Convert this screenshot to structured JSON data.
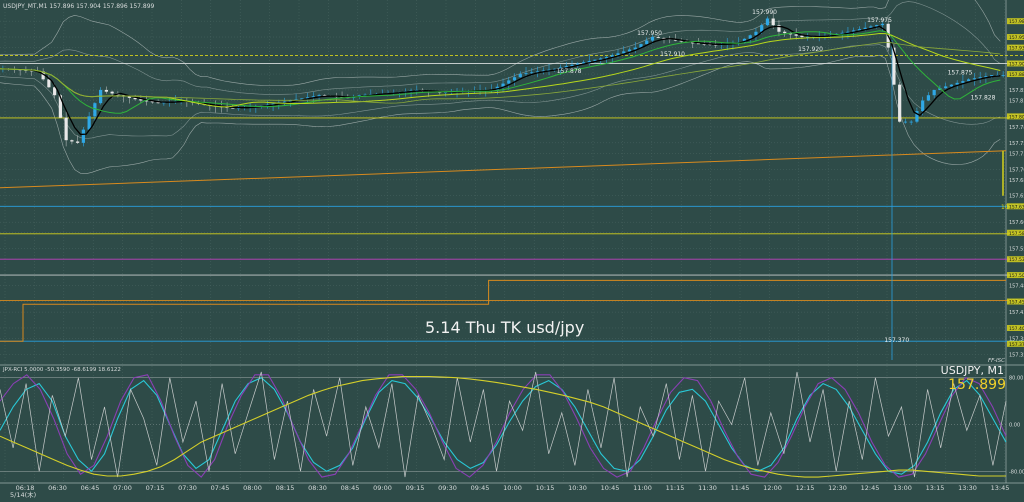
{
  "header": {
    "main_label": "USDJPY_MT,M1  157.896 157.904 157.896 157.899",
    "sub_label": "JPX-RCI 5.0000 -50.3590 -68.6199 18.6122",
    "caption": "5.14 Thu TK usd/jpy",
    "symbol": "USDJPY, M1",
    "bid": "157.899",
    "date_label": "5/14(木)",
    "brand": "FF-ISC"
  },
  "colors": {
    "background": "#2e4b48",
    "grid": "#4a6663",
    "bid_text": "#f1d12a",
    "rci_cyan": "#29c8d6",
    "rci_violet": "#8a3fb5",
    "rci_white": "#c8cccc",
    "rci_yellow": "#d4cf2a",
    "ma_black": "#000000",
    "ma_green": "#2fb43a",
    "ma_lime": "#b6d71c",
    "candle_up": "#2fa8e6",
    "candle_down": "#e8e8e8",
    "level_orange": "#d88a1e",
    "level_yellow": "#d6d21b",
    "level_magenta": "#c040c0"
  },
  "chart_data": [
    {
      "type": "line",
      "name": "price",
      "title": "USDJPY, M1",
      "x_ticks": [
        "06:18",
        "06:30",
        "06:45",
        "07:00",
        "07:15",
        "07:30",
        "07:45",
        "08:00",
        "08:15",
        "08:30",
        "08:45",
        "09:00",
        "09:15",
        "09:30",
        "09:45",
        "10:00",
        "10:15",
        "10:30",
        "10:45",
        "11:00",
        "11:15",
        "11:30",
        "11:45",
        "12:00",
        "12:15",
        "12:30",
        "12:45",
        "13:00",
        "13:15",
        "13:30",
        "13:45"
      ],
      "ylim": [
        157.33,
        158.02
      ],
      "y_ticks": [
        157.98,
        157.95,
        157.93,
        157.9,
        157.88,
        157.85,
        157.83,
        157.8,
        157.78,
        157.75,
        157.73,
        157.7,
        157.68,
        157.65,
        157.63,
        157.6,
        157.58,
        157.55,
        157.53,
        157.5,
        157.48,
        157.45,
        157.43,
        157.4,
        157.38,
        157.35
      ],
      "price_series": [
        [
          0,
          157.89
        ],
        [
          6,
          157.885
        ],
        [
          9,
          157.84
        ],
        [
          11,
          157.755
        ],
        [
          13,
          157.75
        ],
        [
          15,
          157.8
        ],
        [
          17,
          157.85
        ],
        [
          20,
          157.84
        ],
        [
          24,
          157.83
        ],
        [
          27,
          157.825
        ],
        [
          31,
          157.83
        ],
        [
          36,
          157.82
        ],
        [
          40,
          157.815
        ],
        [
          45,
          157.82
        ],
        [
          50,
          157.83
        ],
        [
          55,
          157.84
        ],
        [
          60,
          157.835
        ],
        [
          62,
          157.84
        ],
        [
          68,
          157.845
        ],
        [
          72,
          157.85
        ],
        [
          76,
          157.845
        ],
        [
          80,
          157.848
        ],
        [
          85,
          157.85
        ],
        [
          90,
          157.88
        ],
        [
          96,
          157.89
        ],
        [
          100,
          157.9
        ],
        [
          105,
          157.912
        ],
        [
          110,
          157.93
        ],
        [
          113,
          157.95
        ],
        [
          116,
          157.945
        ],
        [
          120,
          157.938
        ],
        [
          124,
          157.935
        ],
        [
          128,
          157.94
        ],
        [
          131,
          157.96
        ],
        [
          133,
          157.985
        ],
        [
          135,
          157.96
        ],
        [
          139,
          157.95
        ],
        [
          143,
          157.952
        ],
        [
          147,
          157.96
        ],
        [
          151,
          157.97
        ],
        [
          153,
          157.975
        ],
        [
          154,
          157.93
        ],
        [
          155,
          157.86
        ],
        [
          156,
          157.79
        ],
        [
          158,
          157.79
        ],
        [
          160,
          157.83
        ],
        [
          162,
          157.85
        ],
        [
          165,
          157.86
        ],
        [
          168,
          157.87
        ],
        [
          172,
          157.878
        ]
      ],
      "price_labels": [
        {
          "x": 113,
          "value": "157.950"
        },
        {
          "x": 117,
          "value": "157.910"
        },
        {
          "x": 99,
          "value": "157.878"
        },
        {
          "x": 133,
          "value": "157.990"
        },
        {
          "x": 141,
          "value": "157.920"
        },
        {
          "x": 153,
          "value": "157.975"
        },
        {
          "x": 167,
          "value": "157.875"
        },
        {
          "x": 171,
          "value": "157.828"
        },
        {
          "x": 156,
          "value": "157.370"
        }
      ],
      "level_tags": [
        157.98,
        157.95,
        157.93,
        157.9,
        157.88,
        157.8,
        157.63,
        157.58,
        157.53,
        157.5,
        157.45,
        157.4,
        157.37
      ],
      "count_label": "10",
      "horizontal_levels": [
        {
          "value": 157.915,
          "color": "#d6d21b",
          "style": "dashed"
        },
        {
          "value": 157.9,
          "color": "#d8dcdc",
          "style": "solid"
        },
        {
          "value": 157.797,
          "color": "#d6d21b",
          "style": "solid"
        },
        {
          "value": 157.63,
          "color": "#29a0e0",
          "style": "solid"
        },
        {
          "value": 157.578,
          "color": "#d6d21b",
          "style": "solid"
        },
        {
          "value": 157.53,
          "color": "#c040c0",
          "style": "solid"
        },
        {
          "value": 157.5,
          "color": "#c8cccc",
          "style": "solid"
        },
        {
          "value": 157.452,
          "color": "#d88a1e",
          "style": "solid"
        },
        {
          "value": 157.375,
          "color": "#29a0e0",
          "style": "solid"
        }
      ],
      "orange_trend": [
        [
          0,
          157.665
        ],
        [
          175,
          157.735
        ]
      ],
      "orange_step": [
        [
          0,
          157.375
        ],
        [
          4,
          157.375
        ],
        [
          4,
          157.445
        ],
        [
          85,
          157.445
        ],
        [
          85,
          157.49
        ],
        [
          175,
          157.49
        ]
      ]
    },
    {
      "type": "line",
      "name": "JPX-RCI",
      "title": "JPX-RCI 5.0000 -50.3590 -68.6199 18.6122",
      "ylim": [
        -100,
        100
      ],
      "y_ticks": [
        80,
        0,
        -80
      ],
      "y_tick_labels": [
        "80.00",
        "0.00",
        "-80.00"
      ],
      "series": [
        {
          "color": "#29c8d6",
          "values": [
            -10,
            30,
            60,
            70,
            40,
            -20,
            -60,
            -80,
            -50,
            10,
            60,
            75,
            50,
            0,
            -50,
            -75,
            -60,
            -10,
            40,
            70,
            80,
            60,
            20,
            -30,
            -65,
            -80,
            -70,
            -40,
            10,
            55,
            75,
            70,
            45,
            10,
            -30,
            -60,
            -75,
            -65,
            -35,
            5,
            40,
            65,
            75,
            60,
            30,
            -10,
            -50,
            -75,
            -80,
            -60,
            -20,
            25,
            55,
            60,
            40,
            0,
            -40,
            -70,
            -80,
            -70,
            -40,
            10,
            50,
            70,
            60,
            30,
            -10,
            -50,
            -80,
            -85,
            -70,
            -30,
            20,
            60,
            75,
            50,
            10,
            -30
          ]
        },
        {
          "color": "#8a3fb5",
          "values": [
            40,
            70,
            85,
            60,
            10,
            -50,
            -85,
            -70,
            -20,
            40,
            80,
            85,
            40,
            -20,
            -70,
            -90,
            -60,
            0,
            50,
            85,
            85,
            45,
            -10,
            -60,
            -90,
            -85,
            -50,
            0,
            50,
            85,
            85,
            60,
            20,
            -30,
            -75,
            -90,
            -70,
            -30,
            20,
            60,
            85,
            85,
            55,
            10,
            -40,
            -75,
            -90,
            -80,
            -40,
            10,
            55,
            80,
            75,
            40,
            -10,
            -55,
            -85,
            -90,
            -65,
            -20,
            30,
            70,
            80,
            60,
            20,
            -30,
            -70,
            -90,
            -85,
            -50,
            0,
            50,
            80,
            70,
            30,
            -20
          ]
        },
        {
          "color": "#c8cccc",
          "values": [
            60,
            -40,
            70,
            -80,
            50,
            -20,
            80,
            -60,
            30,
            -90,
            60,
            10,
            -70,
            80,
            -30,
            40,
            -80,
            70,
            -50,
            20,
            90,
            -60,
            40,
            -80,
            60,
            -20,
            80,
            -70,
            30,
            -40,
            70,
            -90,
            50,
            0,
            -60,
            80,
            -30,
            60,
            -80,
            40,
            -10,
            90,
            -50,
            20,
            -70,
            60,
            -40,
            80,
            -90,
            30,
            -20,
            70,
            -60,
            50,
            -80,
            40,
            0,
            80,
            -70,
            20,
            -50,
            90,
            -30,
            60,
            -80,
            40,
            -60,
            80,
            -20,
            30,
            -90,
            60,
            -40,
            70,
            -10,
            50,
            -70,
            40
          ]
        },
        {
          "color": "#d4cf2a",
          "values": [
            -20,
            -30,
            -40,
            -50,
            -60,
            -70,
            -78,
            -85,
            -88,
            -88,
            -85,
            -80,
            -72,
            -60,
            -45,
            -30,
            -20,
            -10,
            0,
            10,
            20,
            30,
            40,
            50,
            58,
            65,
            70,
            75,
            78,
            80,
            82,
            82,
            82,
            81,
            80,
            78,
            75,
            72,
            68,
            64,
            60,
            55,
            50,
            44,
            38,
            30,
            20,
            10,
            0,
            -10,
            -20,
            -30,
            -40,
            -50,
            -60,
            -68,
            -75,
            -80,
            -85,
            -88,
            -90,
            -90,
            -88,
            -86,
            -84,
            -82,
            -80,
            -78,
            -78,
            -80,
            -82,
            -84,
            -86,
            -88,
            -88,
            -88
          ]
        }
      ]
    }
  ]
}
